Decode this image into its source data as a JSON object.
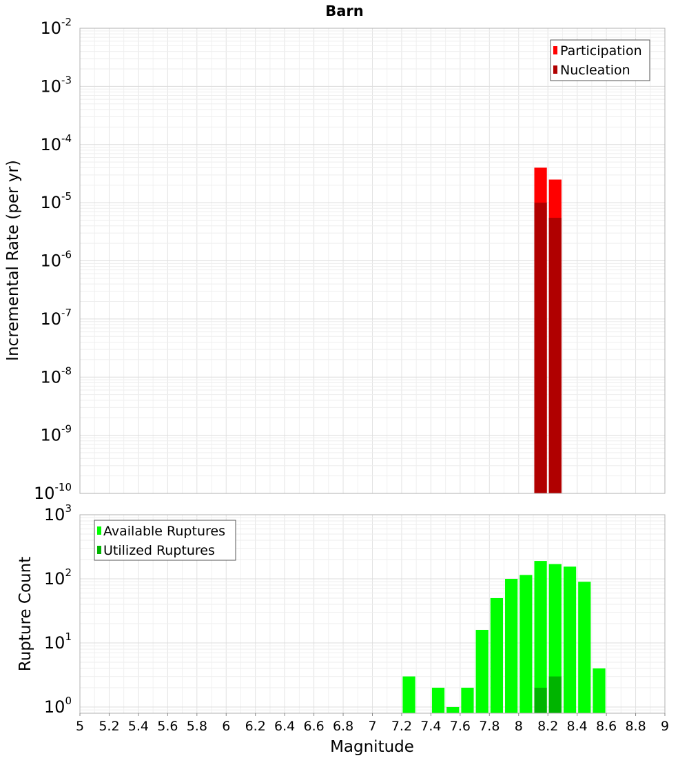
{
  "chart_data": [
    {
      "type": "bar",
      "title": "Barn",
      "xlabel": "",
      "ylabel": "Incremental Rate (per yr)",
      "yscale": "log",
      "ylim_exponents": [
        -10,
        -2
      ],
      "ytick_exponents": [
        -10,
        -9,
        -8,
        -7,
        -6,
        -5,
        -4,
        -3,
        -2
      ],
      "xlim": [
        5,
        9
      ],
      "bin_width": 0.1,
      "grid": true,
      "legend_position": "top-right",
      "series": [
        {
          "name": "Participation",
          "color": "#ff0000",
          "x": [
            8.15,
            8.25
          ],
          "values": [
            4e-05,
            2.5e-05
          ]
        },
        {
          "name": "Nucleation",
          "color": "#b00000",
          "x": [
            8.15,
            8.25
          ],
          "values": [
            1e-05,
            5.5e-06
          ]
        }
      ]
    },
    {
      "type": "bar",
      "title": "",
      "xlabel": "Magnitude",
      "ylabel": "Rupture Count",
      "yscale": "log",
      "ylim": [
        0.8,
        1000
      ],
      "ytick_exponents": [
        0,
        1,
        2,
        3
      ],
      "xlim": [
        5,
        9
      ],
      "xticks": [
        "5",
        "5.2",
        "5.4",
        "5.6",
        "5.8",
        "6",
        "6.2",
        "6.4",
        "6.6",
        "6.8",
        "7",
        "7.2",
        "7.4",
        "7.6",
        "7.8",
        "8",
        "8.2",
        "8.4",
        "8.6",
        "8.8",
        "9"
      ],
      "bin_width": 0.1,
      "grid": true,
      "legend_position": "top-left",
      "series": [
        {
          "name": "Available Ruptures",
          "color": "#00ff00",
          "x": [
            7.25,
            7.45,
            7.55,
            7.65,
            7.75,
            7.85,
            7.95,
            8.05,
            8.15,
            8.25,
            8.35,
            8.45,
            8.55
          ],
          "values": [
            3,
            2,
            1,
            2,
            16,
            50,
            100,
            115,
            190,
            170,
            155,
            90,
            4
          ]
        },
        {
          "name": "Utilized Ruptures",
          "color": "#00b400",
          "x": [
            8.15,
            8.25
          ],
          "values": [
            2,
            3
          ]
        }
      ]
    }
  ]
}
